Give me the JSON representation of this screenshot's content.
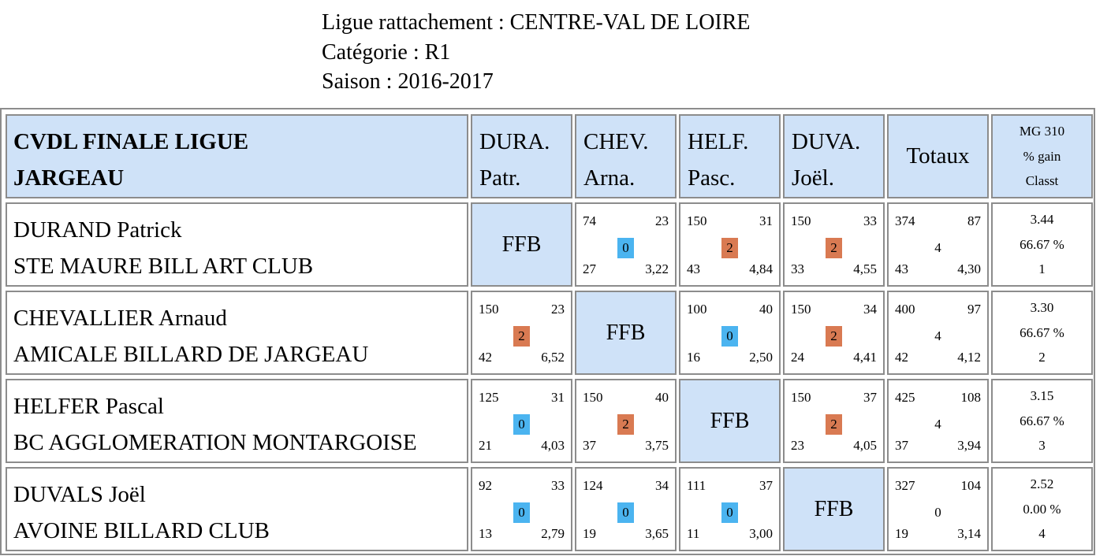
{
  "info": {
    "ligue": "Ligue rattachement : CENTRE-VAL DE LOIRE",
    "categorie": "Catégorie : R1",
    "saison": "Saison : 2016-2017"
  },
  "header": {
    "title_line1": "CVDL FINALE LIGUE",
    "title_line2": "JARGEAU",
    "columns": [
      {
        "line1": "DURA.",
        "line2": "Patr."
      },
      {
        "line1": "CHEV.",
        "line2": "Arna."
      },
      {
        "line1": "HELF.",
        "line2": "Pasc."
      },
      {
        "line1": "DUVA.",
        "line2": "Joël."
      }
    ],
    "totaux": "Totaux",
    "mg_line1": "MG 310",
    "mg_line2": "% gain",
    "mg_line3": "Classt"
  },
  "ffb_label": "FFB",
  "colors": {
    "header_bg": "#cfe2f8",
    "badge_zero": "#4bb4f0",
    "badge_two": "#d97a52",
    "border": "#8c8c8c"
  },
  "rows": [
    {
      "player": "DURAND Patrick",
      "club": "STE MAURE BILL ART CLUB",
      "matches": [
        null,
        {
          "tl": "74",
          "tr": "23",
          "mid": "0",
          "bl": "27",
          "br": "3,22"
        },
        {
          "tl": "150",
          "tr": "31",
          "mid": "2",
          "bl": "43",
          "br": "4,84"
        },
        {
          "tl": "150",
          "tr": "33",
          "mid": "2",
          "bl": "33",
          "br": "4,55"
        }
      ],
      "totaux": {
        "tl": "374",
        "tr": "87",
        "mid": "4",
        "bl": "43",
        "br": "4,30"
      },
      "mg": "3.44",
      "gain": "66.67 %",
      "classt": "1"
    },
    {
      "player": "CHEVALLIER Arnaud",
      "club": "AMICALE BILLARD DE JARGEAU",
      "matches": [
        {
          "tl": "150",
          "tr": "23",
          "mid": "2",
          "bl": "42",
          "br": "6,52"
        },
        null,
        {
          "tl": "100",
          "tr": "40",
          "mid": "0",
          "bl": "16",
          "br": "2,50"
        },
        {
          "tl": "150",
          "tr": "34",
          "mid": "2",
          "bl": "24",
          "br": "4,41"
        }
      ],
      "totaux": {
        "tl": "400",
        "tr": "97",
        "mid": "4",
        "bl": "42",
        "br": "4,12"
      },
      "mg": "3.30",
      "gain": "66.67 %",
      "classt": "2"
    },
    {
      "player": "HELFER Pascal",
      "club": "BC AGGLOMERATION MONTARGOISE",
      "matches": [
        {
          "tl": "125",
          "tr": "31",
          "mid": "0",
          "bl": "21",
          "br": "4,03"
        },
        {
          "tl": "150",
          "tr": "40",
          "mid": "2",
          "bl": "37",
          "br": "3,75"
        },
        null,
        {
          "tl": "150",
          "tr": "37",
          "mid": "2",
          "bl": "23",
          "br": "4,05"
        }
      ],
      "totaux": {
        "tl": "425",
        "tr": "108",
        "mid": "4",
        "bl": "37",
        "br": "3,94"
      },
      "mg": "3.15",
      "gain": "66.67 %",
      "classt": "3"
    },
    {
      "player": "DUVALS Joël",
      "club": "AVOINE BILLARD CLUB",
      "matches": [
        {
          "tl": "92",
          "tr": "33",
          "mid": "0",
          "bl": "13",
          "br": "2,79"
        },
        {
          "tl": "124",
          "tr": "34",
          "mid": "0",
          "bl": "19",
          "br": "3,65"
        },
        {
          "tl": "111",
          "tr": "37",
          "mid": "0",
          "bl": "11",
          "br": "3,00"
        },
        null
      ],
      "totaux": {
        "tl": "327",
        "tr": "104",
        "mid": "0",
        "bl": "19",
        "br": "3,14"
      },
      "mg": "2.52",
      "gain": "0.00 %",
      "classt": "4"
    }
  ]
}
